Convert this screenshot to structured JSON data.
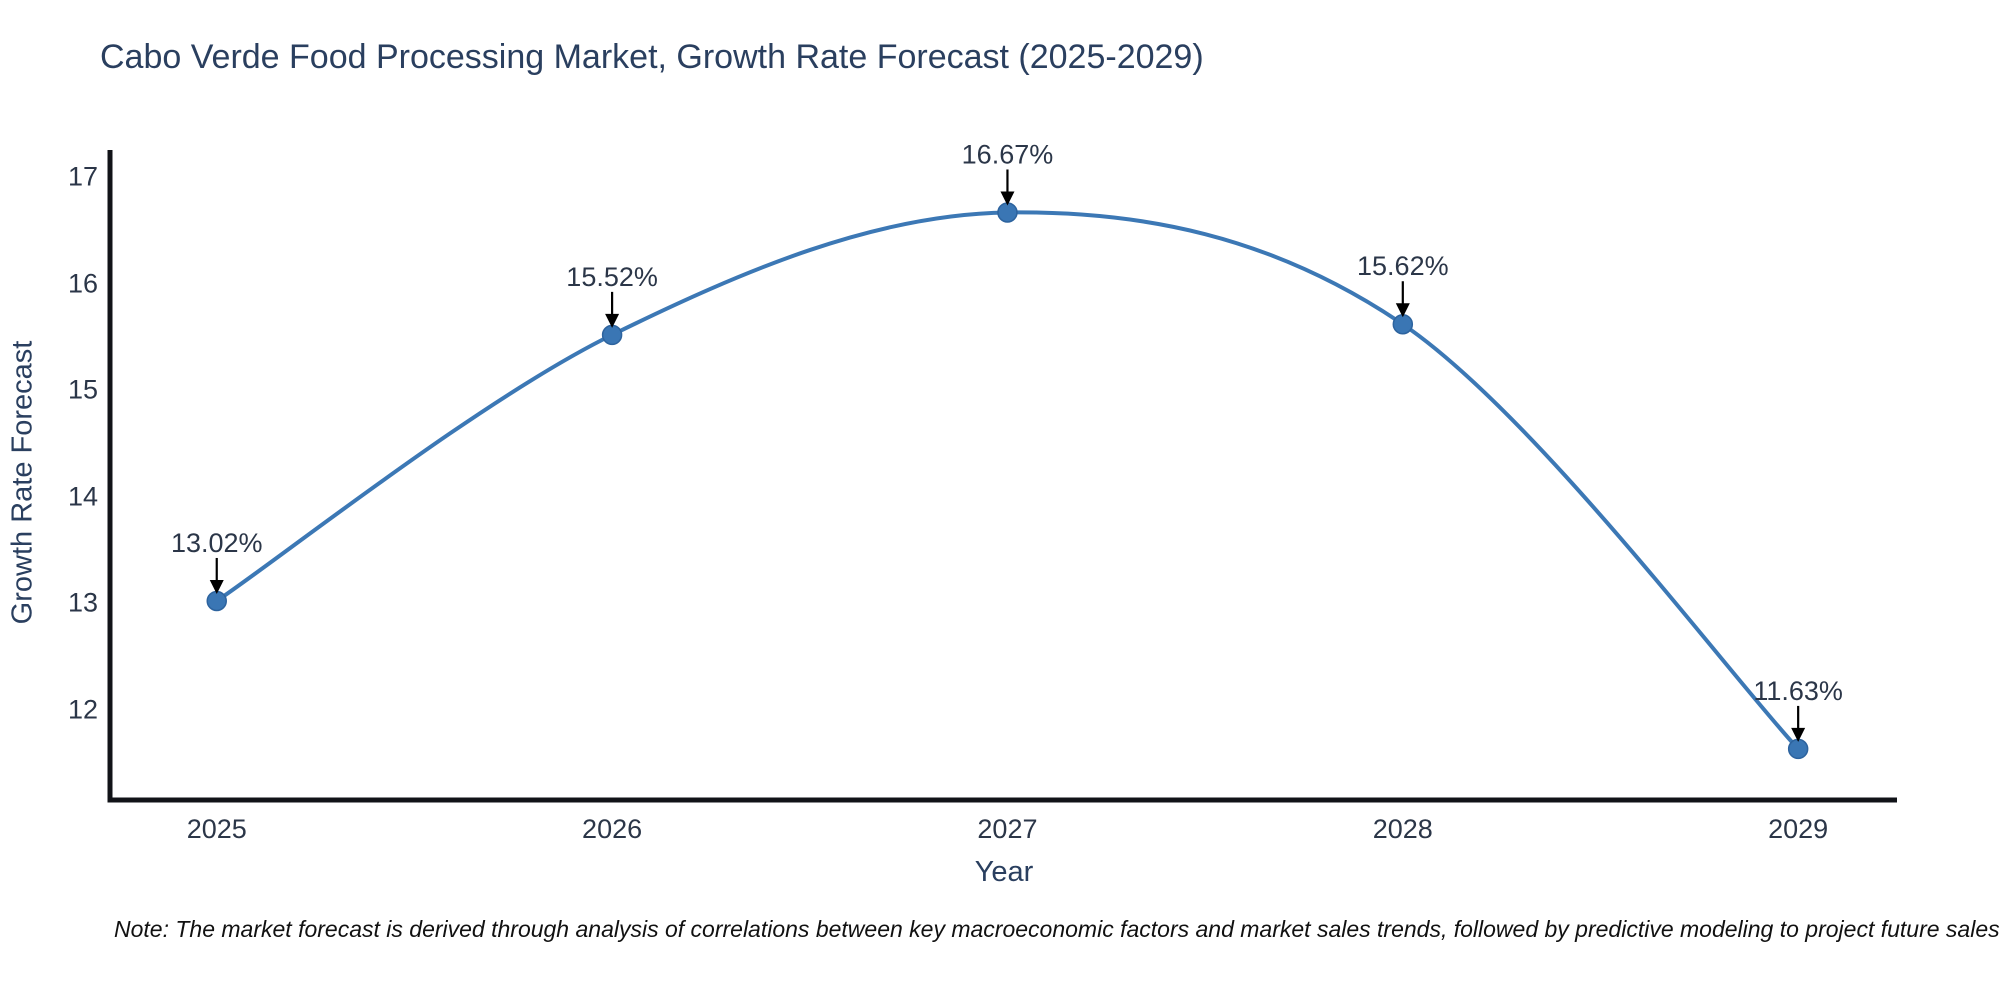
{
  "chart_data": {
    "type": "line",
    "title": "Cabo Verde Food Processing Market, Growth Rate Forecast (2025-2029)",
    "xlabel": "Year",
    "ylabel": "Growth Rate Forecast",
    "x": [
      2025,
      2026,
      2027,
      2028,
      2029
    ],
    "values": [
      13.02,
      15.52,
      16.67,
      15.62,
      11.63
    ],
    "point_labels": [
      "13.02%",
      "15.52%",
      "16.67%",
      "15.62%",
      "11.63%"
    ],
    "xticks": [
      "2025",
      "2026",
      "2027",
      "2028",
      "2029"
    ],
    "yticks": [
      12,
      13,
      14,
      15,
      16,
      17
    ],
    "ylim": [
      11.15,
      17.21
    ],
    "xlim": [
      2024.73,
      2029.25
    ],
    "grid": false,
    "legend": "none",
    "line_shape": "spline",
    "annotation_style": "label-above-with-down-arrow",
    "colors": {
      "line": "#3c78b5",
      "marker_fill": "#3a76b4",
      "marker_edge": "#2d639e",
      "arrow": "#000000",
      "axis_spine": "#111318",
      "tick_text": "#2b3648",
      "title_text": "#2a3f5f",
      "background": "#ffffff"
    }
  },
  "note": "Note: The market forecast is derived through analysis of correlations between key macroeconomic factors and market sales trends, followed by predictive modeling to project future sales"
}
